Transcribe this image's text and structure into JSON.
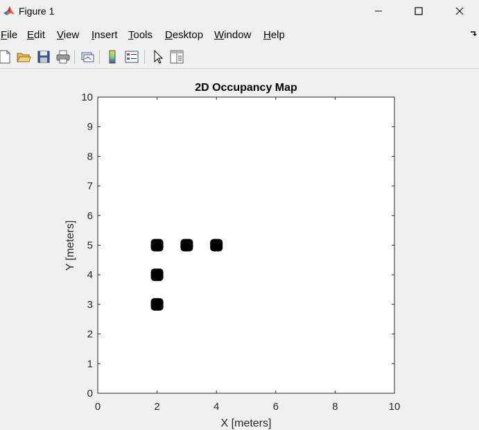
{
  "window": {
    "title": "Figure 1"
  },
  "menu": [
    {
      "label_u": "F",
      "label_rest": "ile"
    },
    {
      "label_u": "E",
      "label_rest": "dit"
    },
    {
      "label_u": "V",
      "label_rest": "iew"
    },
    {
      "label_u": "I",
      "label_rest": "nsert"
    },
    {
      "label_u": "T",
      "label_rest": "ools"
    },
    {
      "label_u": "D",
      "label_rest": "esktop"
    },
    {
      "label_u": "W",
      "label_rest": "indow"
    },
    {
      "label_u": "H",
      "label_rest": "elp"
    }
  ],
  "toolbar_icons": [
    "new-figure-icon",
    "open-file-icon",
    "save-icon",
    "print-icon",
    "link-plot-icon",
    "colorbar-icon",
    "legend-icon",
    "edit-plot-pointer-icon",
    "property-inspector-icon"
  ],
  "chart_data": {
    "type": "scatter",
    "title": "2D Occupancy Map",
    "xlabel": "X [meters]",
    "ylabel": "Y [meters]",
    "xlim": [
      0,
      10
    ],
    "ylim": [
      0,
      10
    ],
    "xticks": [
      0,
      2,
      4,
      6,
      8,
      10
    ],
    "yticks": [
      0,
      1,
      2,
      3,
      4,
      5,
      6,
      7,
      8,
      9,
      10
    ],
    "grid": false,
    "points": [
      {
        "x": 2,
        "y": 5
      },
      {
        "x": 3,
        "y": 5
      },
      {
        "x": 4,
        "y": 5
      },
      {
        "x": 2,
        "y": 4
      },
      {
        "x": 2,
        "y": 3
      }
    ],
    "marker_color": "#000000"
  }
}
